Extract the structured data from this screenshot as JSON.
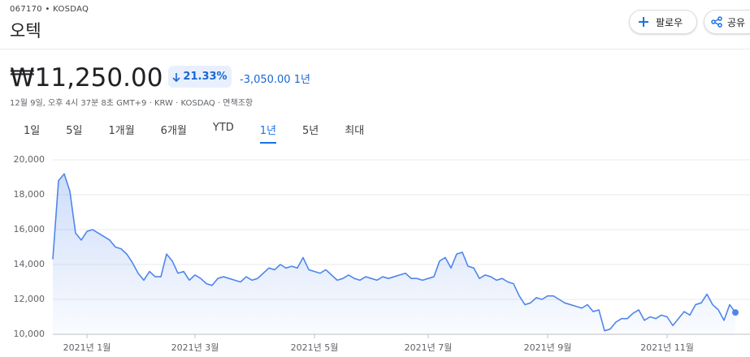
{
  "header": {
    "ticker": "067170 • KOSDAQ",
    "name": "오텍",
    "follow": "팔로우",
    "share": "공유"
  },
  "price": {
    "value": "₩11,250.00",
    "change_percent": "21.33%",
    "change": "-3,050.00",
    "period": "1년",
    "meta": "12월 9일, 오후 4시 37분 8초 GMT+9 · KRW · KOSDAQ · 면책조항"
  },
  "tabs": {
    "items": [
      "1일",
      "5일",
      "1개월",
      "6개월",
      "YTD",
      "1년",
      "5년",
      "최대"
    ],
    "selected": 5
  },
  "chart_data": {
    "type": "line",
    "color": "#4f86ec",
    "grid": true,
    "ylim": [
      10000,
      20000
    ],
    "yticks": [
      {
        "value": 10000,
        "label": "10,000"
      },
      {
        "value": 12000,
        "label": "12,000"
      },
      {
        "value": 14000,
        "label": "14,000"
      },
      {
        "value": 16000,
        "label": "16,000"
      },
      {
        "value": 18000,
        "label": "18,000"
      },
      {
        "value": 20000,
        "label": "20,000"
      }
    ],
    "categories": [
      null,
      null,
      null,
      null,
      null,
      null,
      "2021년 1월",
      null,
      null,
      null,
      null,
      null,
      null,
      null,
      null,
      null,
      null,
      null,
      null,
      null,
      null,
      null,
      null,
      null,
      null,
      "2021년 3월",
      null,
      null,
      null,
      null,
      null,
      null,
      null,
      null,
      null,
      null,
      null,
      null,
      null,
      null,
      null,
      null,
      null,
      null,
      null,
      null,
      "2021년 5월",
      null,
      null,
      null,
      null,
      null,
      null,
      null,
      null,
      null,
      null,
      null,
      null,
      null,
      null,
      null,
      null,
      null,
      null,
      null,
      "2021년 7월",
      null,
      null,
      null,
      null,
      null,
      null,
      null,
      null,
      null,
      null,
      null,
      null,
      null,
      null,
      null,
      null,
      null,
      null,
      null,
      null,
      "2021년 9월",
      null,
      null,
      null,
      null,
      null,
      null,
      null,
      null,
      null,
      null,
      null,
      null,
      null,
      null,
      null,
      null,
      null,
      null,
      null,
      null,
      "2021년 11월",
      null,
      null,
      null,
      null,
      null,
      null,
      null,
      null,
      null,
      null,
      null,
      null
    ],
    "values": [
      14300,
      18800,
      19200,
      18200,
      15800,
      15400,
      15900,
      16000,
      15800,
      15600,
      15400,
      15000,
      14900,
      14600,
      14100,
      13500,
      13100,
      13600,
      13300,
      13300,
      14600,
      14200,
      13500,
      13600,
      13100,
      13400,
      13200,
      12900,
      12800,
      13200,
      13300,
      13200,
      13100,
      13000,
      13300,
      13100,
      13200,
      13500,
      13800,
      13700,
      14000,
      13800,
      13900,
      13800,
      14400,
      13700,
      13600,
      13500,
      13700,
      13400,
      13100,
      13200,
      13400,
      13200,
      13100,
      13300,
      13200,
      13100,
      13300,
      13200,
      13300,
      13400,
      13500,
      13200,
      13200,
      13100,
      13200,
      13300,
      14200,
      14400,
      13800,
      14600,
      14700,
      13900,
      13800,
      13200,
      13400,
      13300,
      13100,
      13200,
      13000,
      12900,
      12200,
      11700,
      11800,
      12100,
      12000,
      12200,
      12200,
      12000,
      11800,
      11700,
      11600,
      11500,
      11700,
      11300,
      11400,
      10200,
      10300,
      10700,
      10900,
      10900,
      11200,
      11400,
      10800,
      11000,
      10900,
      11100,
      11000,
      10500,
      10900,
      11300,
      11100,
      11700,
      11800,
      12300,
      11700,
      11400,
      10800,
      11700,
      11250
    ]
  }
}
